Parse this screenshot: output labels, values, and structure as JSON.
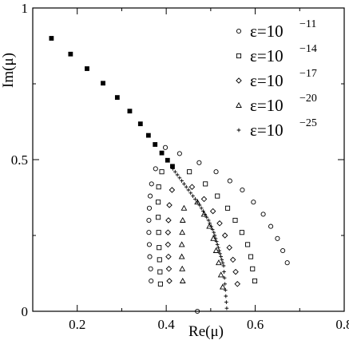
{
  "chart_data": {
    "type": "scatter",
    "xlabel": "Re(μ)",
    "ylabel": "Im(μ)",
    "xlim": [
      0.1,
      0.8
    ],
    "ylim": [
      0,
      1
    ],
    "x_ticks": [
      "0.2",
      "0.4",
      "0.6",
      "0.8"
    ],
    "y_ticks": [
      "0",
      "0.5",
      "1"
    ],
    "x_tick_values": [
      0.2,
      0.4,
      0.6,
      0.8
    ],
    "y_tick_values": [
      0,
      0.5,
      1
    ],
    "legend_position": "top-right",
    "shared_line": {
      "x": [
        0.142,
        0.185,
        0.222,
        0.258,
        0.29,
        0.318,
        0.342,
        0.36,
        0.375,
        0.39,
        0.403,
        0.414
      ],
      "y": [
        0.9,
        0.848,
        0.8,
        0.752,
        0.705,
        0.66,
        0.618,
        0.58,
        0.55,
        0.522,
        0.498,
        0.478
      ]
    },
    "series": [
      {
        "name_base": "ε=10",
        "name_exp": "−11",
        "marker": "circle",
        "x": [
          0.398,
          0.376,
          0.367,
          0.364,
          0.362,
          0.361,
          0.361,
          0.362,
          0.363,
          0.365,
          0.366,
          0.43,
          0.474,
          0.512,
          0.543,
          0.571,
          0.596,
          0.618,
          0.635,
          0.65,
          0.662,
          0.672,
          0.47
        ],
        "y": [
          0.54,
          0.47,
          0.42,
          0.38,
          0.34,
          0.3,
          0.26,
          0.22,
          0.18,
          0.14,
          0.1,
          0.52,
          0.49,
          0.46,
          0.43,
          0.4,
          0.36,
          0.32,
          0.28,
          0.24,
          0.2,
          0.16,
          0.0
        ]
      },
      {
        "name_base": "ε=10",
        "name_exp": "−14",
        "marker": "square",
        "x": [
          0.39,
          0.383,
          0.382,
          0.382,
          0.383,
          0.384,
          0.385,
          0.386,
          0.387,
          0.452,
          0.488,
          0.515,
          0.538,
          0.555,
          0.57,
          0.583,
          0.59,
          0.594,
          0.599
        ],
        "y": [
          0.46,
          0.41,
          0.36,
          0.31,
          0.26,
          0.21,
          0.17,
          0.13,
          0.09,
          0.46,
          0.42,
          0.38,
          0.34,
          0.3,
          0.26,
          0.22,
          0.18,
          0.14,
          0.1
        ]
      },
      {
        "name_base": "ε=10",
        "name_exp": "−17",
        "marker": "diamond",
        "x": [
          0.413,
          0.407,
          0.405,
          0.404,
          0.404,
          0.405,
          0.406,
          0.407,
          0.458,
          0.485,
          0.505,
          0.52,
          0.532,
          0.542,
          0.55,
          0.556,
          0.56
        ],
        "y": [
          0.4,
          0.35,
          0.3,
          0.26,
          0.22,
          0.18,
          0.14,
          0.1,
          0.41,
          0.37,
          0.33,
          0.29,
          0.25,
          0.21,
          0.17,
          0.13,
          0.09
        ]
      },
      {
        "name_base": "ε=10",
        "name_exp": "−20",
        "marker": "triangle",
        "x": [
          0.44,
          0.437,
          0.436,
          0.435,
          0.435,
          0.436,
          0.437,
          0.47,
          0.485,
          0.497,
          0.506,
          0.512,
          0.518,
          0.523,
          0.527
        ],
        "y": [
          0.34,
          0.3,
          0.26,
          0.22,
          0.18,
          0.14,
          0.1,
          0.36,
          0.32,
          0.28,
          0.24,
          0.2,
          0.16,
          0.12,
          0.08
        ]
      },
      {
        "name_base": "ε=10",
        "name_exp": "−25",
        "marker": "plus",
        "x": [
          0.415,
          0.42,
          0.425,
          0.43,
          0.435,
          0.44,
          0.445,
          0.45,
          0.455,
          0.46,
          0.465,
          0.47,
          0.475,
          0.479,
          0.483,
          0.487,
          0.491,
          0.495,
          0.498,
          0.501,
          0.504,
          0.507,
          0.509,
          0.511,
          0.513,
          0.515,
          0.517,
          0.519,
          0.521,
          0.523,
          0.525,
          0.527,
          0.529,
          0.53,
          0.531,
          0.532,
          0.533,
          0.534,
          0.535,
          0.536
        ],
        "y": [
          0.47,
          0.46,
          0.45,
          0.44,
          0.43,
          0.42,
          0.41,
          0.4,
          0.39,
          0.38,
          0.37,
          0.36,
          0.35,
          0.34,
          0.33,
          0.32,
          0.31,
          0.3,
          0.29,
          0.28,
          0.27,
          0.26,
          0.25,
          0.24,
          0.23,
          0.22,
          0.21,
          0.2,
          0.19,
          0.18,
          0.17,
          0.16,
          0.15,
          0.13,
          0.11,
          0.09,
          0.07,
          0.05,
          0.03,
          0.01
        ]
      }
    ]
  }
}
